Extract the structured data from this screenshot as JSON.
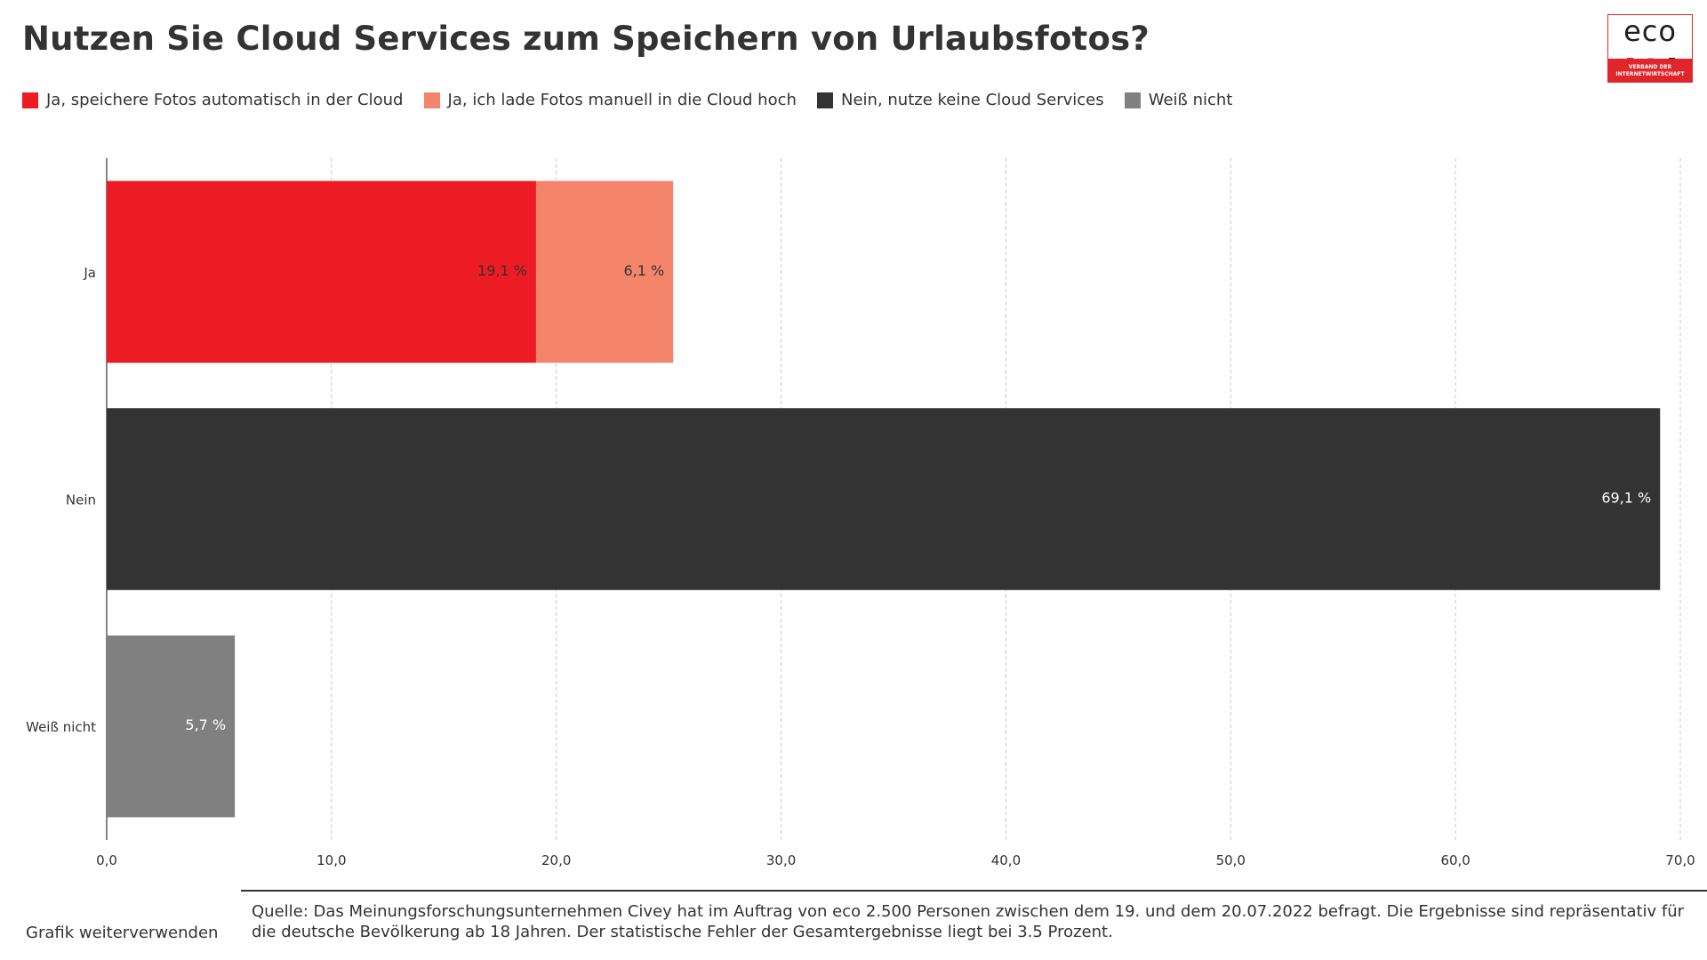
{
  "title": "Nutzen Sie Cloud Services zum Speichern von Urlaubsfotos?",
  "logo": {
    "word": "eco",
    "tagline_line1": "VERBAND DER",
    "tagline_line2": "INTERNETWIRTSCHAFT",
    "dot_colors": [
      "#e0252b",
      "#b5b5b5",
      "#1e1e1e"
    ],
    "brand_color": "#e0252b"
  },
  "legend": [
    {
      "label": "Ja, speichere Fotos automatisch in der Cloud",
      "color": "#ed1c24"
    },
    {
      "label": "Ja, ich lade Fotos manuell in die Cloud hoch",
      "color": "#f4846a"
    },
    {
      "label": "Nein, nutze keine Cloud Services",
      "color": "#333333"
    },
    {
      "label": "Weiß nicht",
      "color": "#808080"
    }
  ],
  "chart_data": {
    "type": "bar",
    "orientation": "horizontal",
    "stacked": true,
    "categories": [
      "Ja",
      "Nein",
      "Weiß nicht"
    ],
    "series": [
      {
        "name": "Ja, speichere Fotos automatisch in der Cloud",
        "color": "#ed1c24",
        "values": [
          19.1,
          null,
          null
        ],
        "labels": [
          "19,1 %",
          null,
          null
        ],
        "label_color": "#333333"
      },
      {
        "name": "Ja, ich lade Fotos manuell in die Cloud hoch",
        "color": "#f4846a",
        "values": [
          6.1,
          null,
          null
        ],
        "labels": [
          "6,1 %",
          null,
          null
        ],
        "label_color": "#333333"
      },
      {
        "name": "Nein, nutze keine Cloud Services",
        "color": "#333333",
        "values": [
          null,
          69.1,
          null
        ],
        "labels": [
          null,
          "69,1 %",
          null
        ],
        "label_color": "#ffffff"
      },
      {
        "name": "Weiß nicht",
        "color": "#808080",
        "values": [
          null,
          null,
          5.7
        ],
        "labels": [
          null,
          null,
          "5,7 %"
        ],
        "label_color": "#ffffff"
      }
    ],
    "xlim": [
      0,
      70
    ],
    "x_ticks": [
      0,
      10,
      20,
      30,
      40,
      50,
      60,
      70
    ],
    "x_tick_labels": [
      "0,0",
      "10,0",
      "20,0",
      "30,0",
      "40,0",
      "50,0",
      "60,0",
      "70,0"
    ],
    "grid": "vertical dashed",
    "legend_position": "top-left"
  },
  "footer": {
    "reuse_link": "Grafik weiterverwenden",
    "source": "Quelle: Das Meinungsforschungsunternehmen Civey hat im Auftrag von eco 2.500 Personen zwischen dem 19. und dem 20.07.2022 befragt. Die Ergebnisse sind repräsentativ für die deutsche Bevölkerung ab 18 Jahren. Der statistische Fehler der Gesamtergebnisse liegt bei 3.5 Prozent."
  }
}
